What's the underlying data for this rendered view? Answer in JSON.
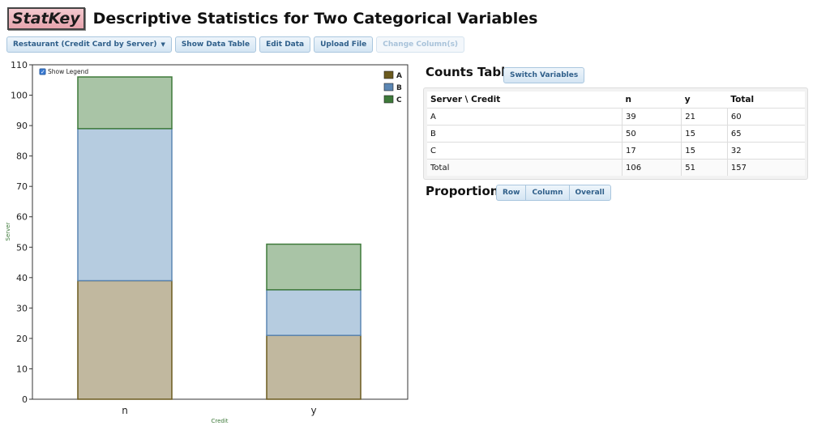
{
  "app": {
    "logo": "StatKey",
    "title": "Descriptive Statistics for Two Categorical Variables"
  },
  "toolbar": {
    "dataset": "Restaurant (Credit Card by Server)",
    "show_table": "Show Data Table",
    "edit_data": "Edit Data",
    "upload_file": "Upload File",
    "change_columns": "Change Column(s)"
  },
  "chart": {
    "show_legend_label": "Show Legend",
    "show_legend_checked": true,
    "colors": {
      "A": "#c1b89f",
      "B": "#b6cce0",
      "C": "#a9c4a6",
      "A_stroke": "#6b5a1e",
      "B_stroke": "#5b86b3",
      "C_stroke": "#3e7a3a"
    }
  },
  "chart_data": {
    "type": "bar",
    "stacked": true,
    "categories": [
      "n",
      "y"
    ],
    "series": [
      {
        "name": "A",
        "values": [
          39,
          21
        ]
      },
      {
        "name": "B",
        "values": [
          50,
          15
        ]
      },
      {
        "name": "C",
        "values": [
          17,
          15
        ]
      }
    ],
    "xlabel": "Credit",
    "ylabel": "Server",
    "ylim": [
      0,
      110
    ],
    "yticks": [
      0,
      10,
      20,
      30,
      40,
      50,
      60,
      70,
      80,
      90,
      100,
      110
    ],
    "legend": "top-right"
  },
  "counts": {
    "title": "Counts Table",
    "switch_label": "Switch Variables",
    "header": [
      "Server \\ Credit",
      "n",
      "y",
      "Total"
    ],
    "rows": [
      [
        "A",
        "39",
        "21",
        "60"
      ],
      [
        "B",
        "50",
        "15",
        "65"
      ],
      [
        "C",
        "17",
        "15",
        "32"
      ],
      [
        "Total",
        "106",
        "51",
        "157"
      ]
    ]
  },
  "proportions": {
    "title": "Proportions",
    "options": [
      "Row",
      "Column",
      "Overall"
    ]
  }
}
